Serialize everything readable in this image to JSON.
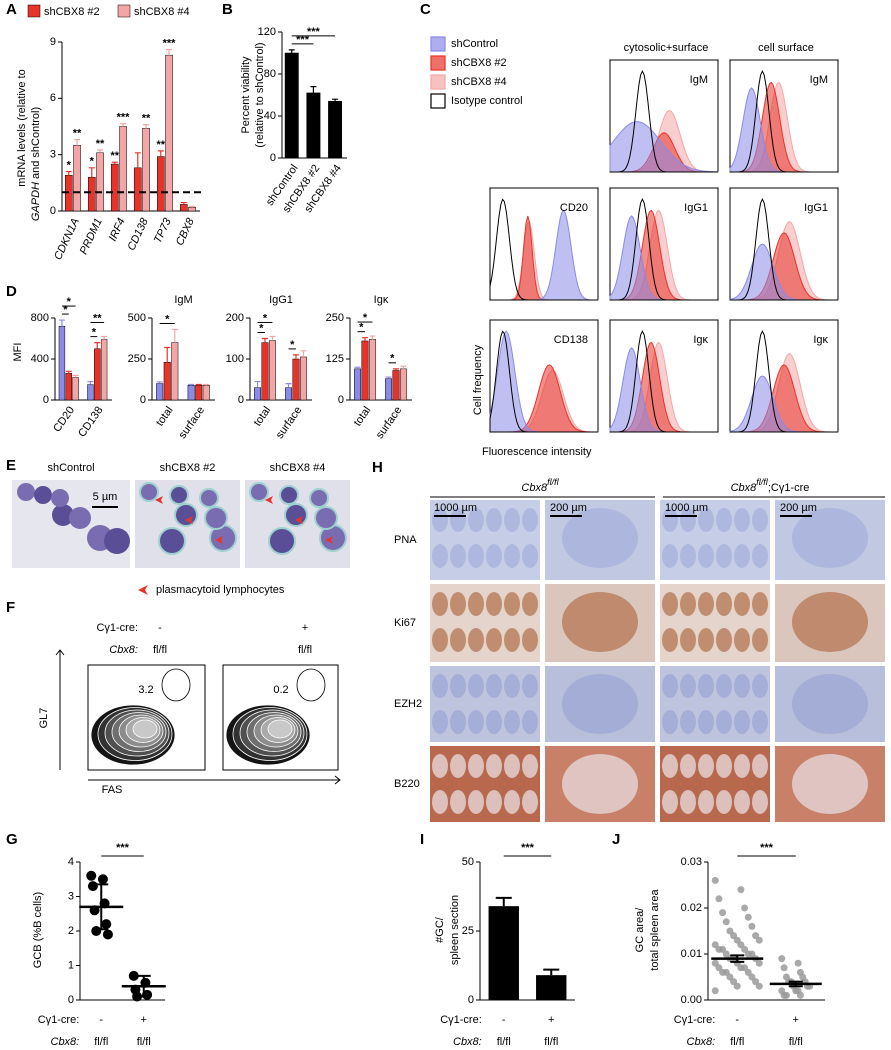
{
  "figure": {
    "A": {
      "label": "A",
      "type": "bar",
      "ylabel_line1": "mRNA levels (relative to",
      "ylabel_gene": "GAPDH",
      "ylabel_rest": "and shControl)",
      "categories": [
        "CDKN1A",
        "PRDM1",
        "IRF4",
        "CD138",
        "TP73",
        "CBX8"
      ],
      "series": [
        {
          "name": "shCBX8 #2",
          "color": "#e8332a",
          "values": [
            1.9,
            1.8,
            2.5,
            2.3,
            2.9,
            0.35
          ],
          "errors": [
            0.2,
            0.5,
            0.1,
            0.8,
            0.3,
            0.1
          ],
          "stars": [
            "*",
            "*",
            "**",
            null,
            "**",
            null
          ]
        },
        {
          "name": "shCBX8 #4",
          "color": "#f4a6a6",
          "values": [
            3.5,
            3.1,
            4.5,
            4.4,
            8.3,
            0.2
          ],
          "errors": [
            0.3,
            0.15,
            0.15,
            0.2,
            0.3,
            0.05
          ],
          "stars": [
            "**",
            "**",
            "***",
            "**",
            "***",
            null
          ]
        }
      ],
      "ylim": [
        0,
        9
      ],
      "yticks": [
        0,
        3,
        6,
        9
      ],
      "reference_line": 1
    },
    "B": {
      "label": "B",
      "type": "bar",
      "ylabel": [
        "Percent viability",
        "(relative to shControl)"
      ],
      "categories": [
        "shControl",
        "shCBX8 #2",
        "shCBX8 #4"
      ],
      "series": [
        {
          "color": "#000000",
          "values": [
            100,
            62,
            54
          ],
          "errors": [
            3,
            6,
            2
          ]
        }
      ],
      "ylim": [
        0,
        120
      ],
      "yticks": [
        0,
        40,
        80,
        120
      ],
      "significance": [
        "***",
        "***"
      ]
    },
    "C": {
      "label": "C",
      "legend": [
        {
          "name": "shControl",
          "color": "#8a8ae8"
        },
        {
          "name": "shCBX8 #2",
          "color": "#e8332a"
        },
        {
          "name": "shCBX8 #4",
          "color": "#f4a6a6"
        },
        {
          "name": "Isotype control",
          "color": "#ffffff"
        }
      ],
      "columns": [
        "cytosolic+surface",
        "cell surface"
      ],
      "histograms": [
        [
          "IgM",
          "IgM"
        ],
        [
          "CD20",
          "IgG1",
          "IgG1"
        ],
        [
          "CD138",
          "Igκ",
          "Igκ"
        ]
      ],
      "ylabel": "Cell frequency",
      "xlabel": "Fluorescence intensity"
    },
    "D": {
      "label": "D",
      "ylabel": "MFI",
      "charts": [
        {
          "type": "bar",
          "categories": [
            "CD20",
            "CD138"
          ],
          "series": [
            {
              "color": "#8a8ae8",
              "values": [
                720,
                150
              ],
              "errors": [
                60,
                30
              ]
            },
            {
              "color": "#e8332a",
              "values": [
                260,
                500
              ],
              "errors": [
                20,
                60
              ]
            },
            {
              "color": "#f4a6a6",
              "values": [
                220,
                590
              ],
              "errors": [
                20,
                30
              ]
            }
          ],
          "ylim": [
            0,
            800
          ],
          "yticks": [
            0,
            400,
            800
          ],
          "significance": [
            "*",
            "*",
            "**",
            "*"
          ]
        },
        {
          "type": "bar",
          "title": "IgM",
          "categories": [
            "total",
            "surface"
          ],
          "series": [
            {
              "color": "#8a8ae8",
              "values": [
                100,
                90
              ],
              "errors": [
                10,
                5
              ]
            },
            {
              "color": "#e8332a",
              "values": [
                230,
                90
              ],
              "errors": [
                90,
                5
              ]
            },
            {
              "color": "#f4a6a6",
              "values": [
                350,
                90
              ],
              "errors": [
                80,
                5
              ]
            }
          ],
          "ylim": [
            0,
            500
          ],
          "yticks": [
            0,
            250,
            500
          ],
          "significance": [
            "*"
          ]
        },
        {
          "type": "bar",
          "title": "IgG1",
          "categories": [
            "total",
            "surface"
          ],
          "series": [
            {
              "color": "#8a8ae8",
              "values": [
                30,
                30
              ],
              "errors": [
                15,
                10
              ]
            },
            {
              "color": "#e8332a",
              "values": [
                140,
                100
              ],
              "errors": [
                10,
                10
              ]
            },
            {
              "color": "#f4a6a6",
              "values": [
                145,
                105
              ],
              "errors": [
                10,
                15
              ]
            }
          ],
          "ylim": [
            0,
            200
          ],
          "yticks": [
            0,
            100,
            200
          ],
          "significance": [
            "*",
            "*",
            "*"
          ]
        },
        {
          "type": "bar",
          "title": "Igκ",
          "categories": [
            "total",
            "surface"
          ],
          "series": [
            {
              "color": "#8a8ae8",
              "values": [
                95,
                65
              ],
              "errors": [
                5,
                5
              ]
            },
            {
              "color": "#e8332a",
              "values": [
                180,
                90
              ],
              "errors": [
                10,
                5
              ]
            },
            {
              "color": "#f4a6a6",
              "values": [
                185,
                95
              ],
              "errors": [
                10,
                8
              ]
            }
          ],
          "ylim": [
            0,
            250
          ],
          "yticks": [
            0,
            125,
            250
          ],
          "significance": [
            "*",
            "*",
            "*"
          ]
        }
      ]
    },
    "E": {
      "label": "E",
      "images": [
        "shControl",
        "shCBX8 #2",
        "shCBX8 #4"
      ],
      "scale_bar": "5 µm",
      "legend": "plasmacytoid lymphocytes"
    },
    "F": {
      "label": "F",
      "conditions": {
        "cre_label": "Cγ1-cre:",
        "cre": [
          "-",
          "+"
        ],
        "cbx8_label": "Cbx8:",
        "cbx8": [
          "fl/fl",
          "fl/fl"
        ]
      },
      "gates": [
        "3.2",
        "0.2"
      ],
      "ylabel": "GL7",
      "xlabel": "FAS"
    },
    "G": {
      "label": "G",
      "type": "scatter",
      "ylabel": "GCB (%B cells)",
      "groups": [
        {
          "values": [
            3.6,
            3.5,
            3.3,
            2.8,
            2.6,
            2.2,
            2.0,
            1.9
          ],
          "mean": 2.7,
          "error": 0.65
        },
        {
          "values": [
            0.7,
            0.5,
            0.3,
            0.15,
            0.1
          ],
          "mean": 0.4,
          "error": 0.3
        }
      ],
      "ylim": [
        0,
        4
      ],
      "yticks": [
        0,
        1,
        2,
        3,
        4
      ],
      "significance": "***",
      "conditions": {
        "cre_label": "Cγ1-cre:",
        "cre": [
          "-",
          "+"
        ],
        "cbx8_label": "Cbx8:",
        "cbx8": [
          "fl/fl",
          "fl/fl"
        ]
      }
    },
    "H": {
      "label": "H",
      "columns": [
        {
          "gene": "Cbx8",
          "sup": "fl/fl"
        },
        {
          "gene": "Cbx8",
          "sup": "fl/fl",
          "suffix": ";Cγ1-cre"
        }
      ],
      "rows": [
        "PNA",
        "Ki67",
        "EZH2",
        "B220"
      ],
      "scale_bars": [
        "1000 µm",
        "200 µm"
      ]
    },
    "I": {
      "label": "I",
      "type": "bar",
      "ylabel": [
        "#GC/",
        "spleen section"
      ],
      "values": [
        34,
        9
      ],
      "errors": [
        3,
        2
      ],
      "color": "#000000",
      "ylim": [
        0,
        50
      ],
      "yticks": [
        0,
        25,
        50
      ],
      "significance": "***",
      "conditions": {
        "cre_label": "Cγ1-cre:",
        "cre": [
          "-",
          "+"
        ],
        "cbx8_label": "Cbx8:",
        "cbx8": [
          "fl/fl",
          "fl/fl"
        ]
      }
    },
    "J": {
      "label": "J",
      "type": "scatter",
      "ylabel": [
        "GC area/",
        "total spleen area"
      ],
      "groups": [
        {
          "values": [
            0.026,
            0.024,
            0.022,
            0.02,
            0.019,
            0.018,
            0.017,
            0.016,
            0.015,
            0.014,
            0.014,
            0.013,
            0.013,
            0.012,
            0.012,
            0.011,
            0.011,
            0.011,
            0.01,
            0.01,
            0.01,
            0.009,
            0.009,
            0.009,
            0.008,
            0.008,
            0.008,
            0.007,
            0.007,
            0.007,
            0.006,
            0.006,
            0.006,
            0.005,
            0.005,
            0.004,
            0.004,
            0.003,
            0.003,
            0.002
          ],
          "mean": 0.009,
          "error": 0.0007
        },
        {
          "values": [
            0.009,
            0.008,
            0.007,
            0.006,
            0.005,
            0.005,
            0.004,
            0.004,
            0.004,
            0.003,
            0.003,
            0.003,
            0.002,
            0.002,
            0.002,
            0.001,
            0.001,
            0.001
          ],
          "mean": 0.0035,
          "error": 0.0005
        }
      ],
      "ylim": [
        0,
        0.03
      ],
      "yticks": [
        {
          "value": 0,
          "label": "0.00"
        },
        {
          "value": 0.01,
          "label": "0.01"
        },
        {
          "value": 0.02,
          "label": "0.02"
        },
        {
          "value": 0.03,
          "label": "0.03"
        }
      ],
      "significance": "***",
      "conditions": {
        "cre_label": "Cγ1-cre:",
        "cre": [
          "-",
          "+"
        ],
        "cbx8_label": "Cbx8:",
        "cbx8": [
          "fl/fl",
          "fl/fl"
        ]
      }
    }
  }
}
